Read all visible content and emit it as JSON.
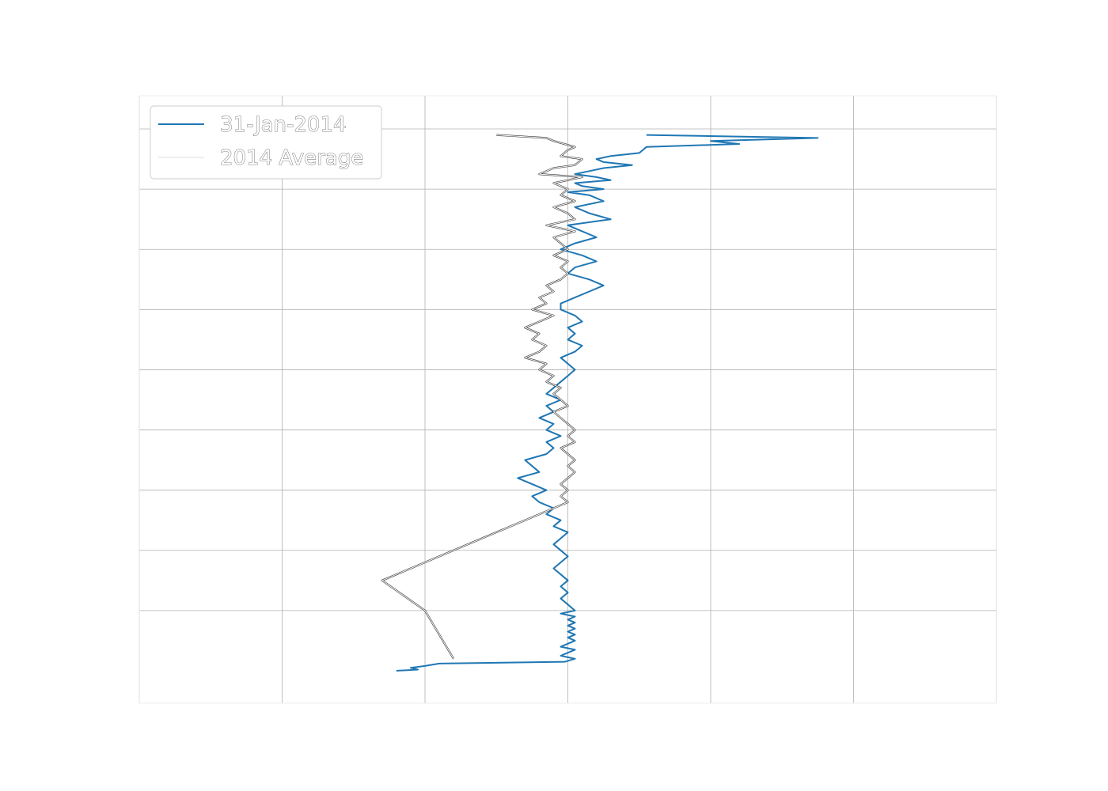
{
  "chart_data": {
    "type": "line",
    "title": "",
    "xlabel": "",
    "ylabel": "",
    "xlim": [
      -3,
      3
    ],
    "ylim": [
      9,
      0
    ],
    "grid": true,
    "legend_position": "top-left",
    "series": [
      {
        "name": "31-Jan-2014",
        "color": "#1f77b4",
        "x": [
          0.55,
          1.75,
          1.0,
          1.2,
          0.55,
          0.5,
          0.3,
          0.2,
          0.25,
          0.45,
          0.25,
          0.15,
          0.05,
          0.2,
          0.3,
          0.05,
          0.1,
          0.25,
          0.0,
          0.15,
          0.25,
          0.05,
          0.15,
          0.3,
          0.0,
          0.1,
          0.2,
          0.05,
          -0.05,
          0.1,
          0.2,
          0.05,
          0.0,
          0.15,
          0.25,
          0.15,
          0.05,
          -0.05,
          -0.05,
          0.05,
          0.1,
          0.0,
          0.05,
          0.0,
          0.1,
          0.05,
          -0.05,
          0.0,
          0.05,
          0.0,
          -0.05,
          -0.1,
          -0.15,
          -0.05,
          -0.15,
          -0.1,
          -0.2,
          -0.1,
          -0.15,
          -0.05,
          -0.15,
          -0.1,
          -0.15,
          -0.3,
          -0.25,
          -0.2,
          -0.35,
          -0.25,
          -0.15,
          -0.25,
          -0.2,
          -0.1,
          -0.15,
          -0.05,
          -0.1,
          0.0,
          -0.05,
          -0.1,
          -0.05,
          0.0,
          -0.05,
          -0.1,
          -0.05,
          0.0,
          -0.05,
          0.0,
          -0.05,
          0.0,
          0.05,
          -0.05,
          0.05,
          0.0,
          0.05,
          0.0,
          0.05,
          0.0,
          0.05,
          0.0,
          0.05,
          0.0,
          -0.05,
          0.05,
          0.0,
          -0.05,
          0.05,
          -0.02,
          -0.9,
          -1.0,
          -1.1,
          -1.05,
          -1.2
        ],
        "y": [
          0.1,
          0.15,
          0.2,
          0.25,
          0.3,
          0.4,
          0.45,
          0.5,
          0.55,
          0.6,
          0.65,
          0.7,
          0.75,
          0.8,
          0.85,
          0.9,
          0.95,
          1.0,
          1.05,
          1.1,
          1.2,
          1.3,
          1.4,
          1.5,
          1.6,
          1.7,
          1.8,
          1.9,
          2.0,
          2.1,
          2.2,
          2.3,
          2.4,
          2.5,
          2.6,
          2.7,
          2.8,
          2.9,
          3.0,
          3.1,
          3.2,
          3.3,
          3.4,
          3.5,
          3.6,
          3.7,
          3.8,
          3.9,
          4.0,
          4.1,
          4.2,
          4.3,
          4.4,
          4.5,
          4.6,
          4.7,
          4.8,
          4.9,
          5.0,
          5.1,
          5.2,
          5.3,
          5.4,
          5.5,
          5.6,
          5.7,
          5.8,
          5.9,
          6.0,
          6.1,
          6.2,
          6.3,
          6.4,
          6.5,
          6.6,
          6.7,
          6.8,
          6.9,
          7.0,
          7.1,
          7.2,
          7.3,
          7.4,
          7.5,
          7.6,
          7.7,
          7.8,
          7.9,
          8.0,
          8.05,
          8.1,
          8.15,
          8.2,
          8.25,
          8.3,
          8.35,
          8.4,
          8.45,
          8.5,
          8.55,
          8.6,
          8.65,
          8.7,
          8.75,
          8.8,
          8.85,
          8.88,
          8.92,
          8.95,
          8.98,
          9.0
        ]
      },
      {
        "name": "2014 Average",
        "color": "#ffffff",
        "x": [
          -0.5,
          -0.15,
          -0.1,
          0.05,
          0.0,
          -0.05,
          0.1,
          0.05,
          -0.1,
          -0.2,
          0.1,
          -0.1,
          0.0,
          -0.05,
          0.05,
          -0.1,
          0.0,
          0.05,
          -0.15,
          0.05,
          -0.1,
          -0.05,
          0.0,
          -0.1,
          0.0,
          -0.05,
          0.0,
          -0.05,
          -0.15,
          -0.1,
          -0.2,
          -0.15,
          -0.25,
          -0.1,
          -0.2,
          -0.3,
          -0.2,
          -0.25,
          -0.15,
          -0.2,
          -0.3,
          -0.15,
          -0.2,
          -0.1,
          -0.15,
          -0.05,
          -0.1,
          -0.05,
          0.0,
          -0.1,
          -0.05,
          0.0,
          0.05,
          0.0,
          0.05,
          -0.05,
          0.0,
          0.05,
          0.0,
          0.05,
          0.0,
          -0.05,
          0.0,
          -0.05,
          0.0,
          -1.3,
          -1.0,
          -0.8
        ],
        "y": [
          0.1,
          0.15,
          0.2,
          0.3,
          0.35,
          0.45,
          0.5,
          0.6,
          0.65,
          0.75,
          0.8,
          0.9,
          1.0,
          1.1,
          1.2,
          1.3,
          1.4,
          1.5,
          1.6,
          1.7,
          1.8,
          1.9,
          2.0,
          2.1,
          2.2,
          2.3,
          2.4,
          2.5,
          2.6,
          2.7,
          2.8,
          2.9,
          3.0,
          3.1,
          3.2,
          3.3,
          3.4,
          3.5,
          3.6,
          3.7,
          3.8,
          3.9,
          4.0,
          4.1,
          4.2,
          4.3,
          4.4,
          4.5,
          4.6,
          4.7,
          4.8,
          4.9,
          5.0,
          5.1,
          5.2,
          5.3,
          5.4,
          5.5,
          5.6,
          5.7,
          5.8,
          5.9,
          6.0,
          6.1,
          6.2,
          7.5,
          8.0,
          8.8
        ]
      }
    ],
    "legend": {
      "entries": [
        "31-Jan-2014",
        "2014 Average"
      ]
    }
  }
}
